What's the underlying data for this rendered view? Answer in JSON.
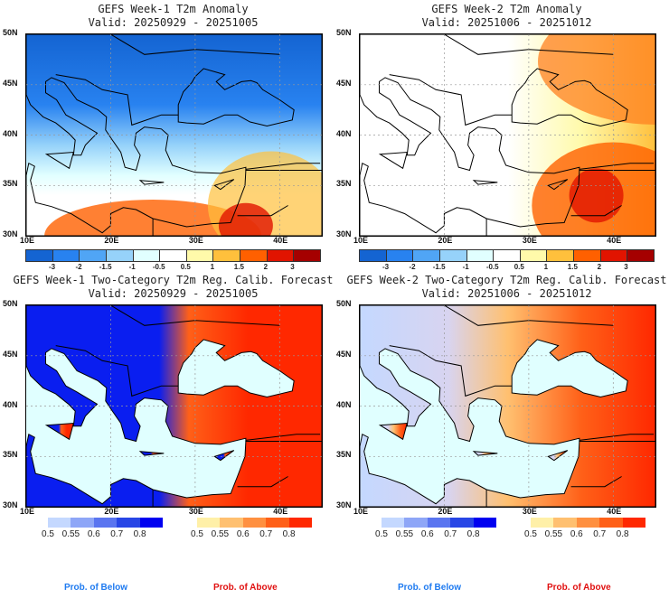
{
  "panels": [
    {
      "title": "GEFS Week-1 T2m Anomaly",
      "valid": "Valid: 20250929 - 20251005",
      "kind": "anom1"
    },
    {
      "title": "GEFS Week-2 T2m Anomaly",
      "valid": "Valid: 20251006 - 20251012",
      "kind": "anom2"
    },
    {
      "title": "GEFS Week-1 Two-Category T2m Reg. Calib. Forecast",
      "valid": "Valid: 20250929 - 20251005",
      "kind": "prob1"
    },
    {
      "title": "GEFS Week-2 Two-Category T2m Reg. Calib. Forecast",
      "valid": "Valid: 20251006 - 20251012",
      "kind": "prob2"
    }
  ],
  "lat_labels": [
    "50N",
    "45N",
    "40N",
    "35N",
    "30N"
  ],
  "lon_labels": [
    "10E",
    "20E",
    "30E",
    "40E"
  ],
  "anomaly_colorbar": {
    "colors": [
      "#1464d2",
      "#2882f0",
      "#50a5f5",
      "#96d2fa",
      "#e1ffff",
      "#ffffff",
      "#fffaaa",
      "#ffc03c",
      "#ff6000",
      "#e11400",
      "#a50000"
    ],
    "labels": [
      "-3",
      "-2",
      "-1.5",
      "-1",
      "-0.5",
      "0.5",
      "1",
      "1.5",
      "2",
      "3"
    ]
  },
  "prob_below": {
    "colors": [
      "#c4d8ff",
      "#8ea6f7",
      "#5a75f0",
      "#2846e6",
      "#0000f0"
    ],
    "labels": [
      "0.5",
      "0.55",
      "0.6",
      "0.7",
      "0.8"
    ],
    "legend": "Prob. of Below",
    "legend_color": "#1e7af0"
  },
  "prob_above": {
    "colors": [
      "#fff0a8",
      "#ffc070",
      "#ff9040",
      "#ff6018",
      "#ff2800"
    ],
    "labels": [
      "0.5",
      "0.55",
      "0.6",
      "0.7",
      "0.8"
    ],
    "legend": "Prob. of Above",
    "legend_color": "#e01010"
  }
}
